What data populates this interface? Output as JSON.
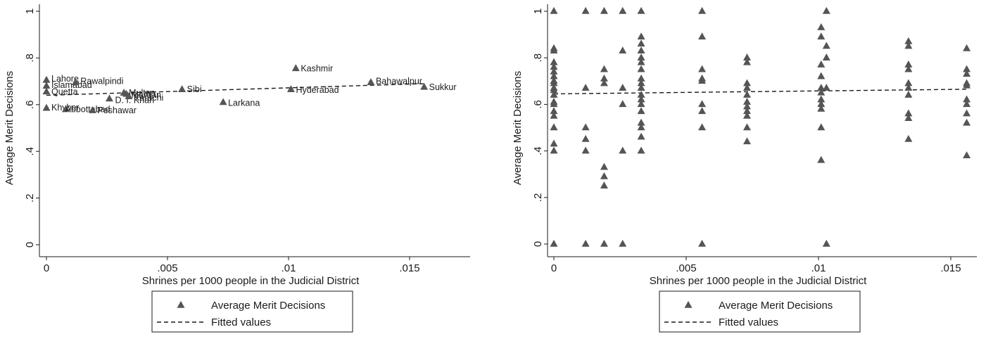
{
  "chart_data": [
    {
      "type": "scatter",
      "title": "",
      "xlabel": "Shrines per 1000 people in the Judicial District",
      "ylabel": "Average Merit Decisions",
      "xlim": [
        -0.0005,
        0.0175
      ],
      "ylim": [
        0,
        1
      ],
      "xticks": [
        0,
        0.005,
        0.01,
        0.015
      ],
      "xtick_labels": [
        "0",
        ".005",
        ".01",
        ".015"
      ],
      "yticks": [
        0,
        0.2,
        0.4,
        0.6,
        0.8,
        1
      ],
      "ytick_labels": [
        "0",
        ".2",
        ".4",
        ".6",
        ".8",
        "1"
      ],
      "grid": false,
      "legend_position": "bottom",
      "legend": [
        "Average Merit Decisions",
        "Fitted values"
      ],
      "points": [
        {
          "label": "Lahore",
          "x": 0.0,
          "y": 0.705
        },
        {
          "label": "Islamabad",
          "x": 0.0,
          "y": 0.68
        },
        {
          "label": "Quetta",
          "x": 0.0,
          "y": 0.655
        },
        {
          "label": "Khyber",
          "x": 0.0,
          "y": 0.585
        },
        {
          "label": "Abbottabad",
          "x": 0.0008,
          "y": 0.58
        },
        {
          "label": "Rawalpindi",
          "x": 0.0012,
          "y": 0.695
        },
        {
          "label": "Peshawar",
          "x": 0.0019,
          "y": 0.575
        },
        {
          "label": "D. I. Khan",
          "x": 0.0026,
          "y": 0.625
        },
        {
          "label": "Multan",
          "x": 0.0032,
          "y": 0.65
        },
        {
          "label": "Mardan",
          "x": 0.0033,
          "y": 0.645
        },
        {
          "label": "Karachi",
          "x": 0.0034,
          "y": 0.635
        },
        {
          "label": "Sibi",
          "x": 0.0056,
          "y": 0.665
        },
        {
          "label": "Larkana",
          "x": 0.0073,
          "y": 0.61
        },
        {
          "label": "Hyderabad",
          "x": 0.0101,
          "y": 0.665
        },
        {
          "label": "Kashmir",
          "x": 0.0103,
          "y": 0.755
        },
        {
          "label": "Bahawalpur",
          "x": 0.0134,
          "y": 0.695
        },
        {
          "label": "Sukkur",
          "x": 0.0156,
          "y": 0.675
        }
      ],
      "fitted": {
        "x": [
          0,
          0.0156
        ],
        "y": [
          0.64,
          0.69
        ]
      }
    },
    {
      "type": "scatter",
      "title": "",
      "xlabel": "Shrines per 1000 people in the Judicial District",
      "ylabel": "Average Merit Decisions",
      "xlim": [
        -0.0005,
        0.0175
      ],
      "ylim": [
        0,
        1
      ],
      "xticks": [
        0,
        0.005,
        0.01,
        0.015
      ],
      "xtick_labels": [
        "0",
        ".005",
        ".01",
        ".015"
      ],
      "yticks": [
        0,
        0.2,
        0.4,
        0.6,
        0.8,
        1
      ],
      "ytick_labels": [
        "0",
        ".2",
        ".4",
        ".6",
        ".8",
        "1"
      ],
      "grid": false,
      "legend_position": "bottom",
      "legend": [
        "Average Merit Decisions",
        "Fitted values"
      ],
      "points": [
        {
          "x": 0.0,
          "y": 1.0
        },
        {
          "x": 0.0,
          "y": 0.84
        },
        {
          "x": 0.0,
          "y": 0.83
        },
        {
          "x": 0.0,
          "y": 0.78
        },
        {
          "x": 0.0,
          "y": 0.76
        },
        {
          "x": 0.0,
          "y": 0.74
        },
        {
          "x": 0.0,
          "y": 0.72
        },
        {
          "x": 0.0,
          "y": 0.7
        },
        {
          "x": 0.0,
          "y": 0.69
        },
        {
          "x": 0.0,
          "y": 0.67
        },
        {
          "x": 0.0,
          "y": 0.66
        },
        {
          "x": 0.0,
          "y": 0.64
        },
        {
          "x": 0.0,
          "y": 0.61
        },
        {
          "x": 0.0,
          "y": 0.6
        },
        {
          "x": 0.0,
          "y": 0.57
        },
        {
          "x": 0.0,
          "y": 0.55
        },
        {
          "x": 0.0,
          "y": 0.5
        },
        {
          "x": 0.0,
          "y": 0.43
        },
        {
          "x": 0.0,
          "y": 0.4
        },
        {
          "x": 0.0,
          "y": 0.0
        },
        {
          "x": 0.0012,
          "y": 1.0
        },
        {
          "x": 0.0012,
          "y": 0.67
        },
        {
          "x": 0.0012,
          "y": 0.5
        },
        {
          "x": 0.0012,
          "y": 0.45
        },
        {
          "x": 0.0012,
          "y": 0.4
        },
        {
          "x": 0.0012,
          "y": 0.0
        },
        {
          "x": 0.0019,
          "y": 1.0
        },
        {
          "x": 0.0019,
          "y": 0.75
        },
        {
          "x": 0.0019,
          "y": 0.71
        },
        {
          "x": 0.0019,
          "y": 0.69
        },
        {
          "x": 0.0019,
          "y": 0.33
        },
        {
          "x": 0.0019,
          "y": 0.29
        },
        {
          "x": 0.0019,
          "y": 0.25
        },
        {
          "x": 0.0019,
          "y": 0.0
        },
        {
          "x": 0.0026,
          "y": 1.0
        },
        {
          "x": 0.0026,
          "y": 0.83
        },
        {
          "x": 0.0026,
          "y": 0.67
        },
        {
          "x": 0.0026,
          "y": 0.6
        },
        {
          "x": 0.0026,
          "y": 0.4
        },
        {
          "x": 0.0026,
          "y": 0.0
        },
        {
          "x": 0.0033,
          "y": 1.0
        },
        {
          "x": 0.0033,
          "y": 0.89
        },
        {
          "x": 0.0033,
          "y": 0.86
        },
        {
          "x": 0.0033,
          "y": 0.83
        },
        {
          "x": 0.0033,
          "y": 0.8
        },
        {
          "x": 0.0033,
          "y": 0.78
        },
        {
          "x": 0.0033,
          "y": 0.75
        },
        {
          "x": 0.0033,
          "y": 0.71
        },
        {
          "x": 0.0033,
          "y": 0.69
        },
        {
          "x": 0.0033,
          "y": 0.67
        },
        {
          "x": 0.0033,
          "y": 0.64
        },
        {
          "x": 0.0033,
          "y": 0.62
        },
        {
          "x": 0.0033,
          "y": 0.6
        },
        {
          "x": 0.0033,
          "y": 0.57
        },
        {
          "x": 0.0033,
          "y": 0.52
        },
        {
          "x": 0.0033,
          "y": 0.5
        },
        {
          "x": 0.0033,
          "y": 0.46
        },
        {
          "x": 0.0033,
          "y": 0.4
        },
        {
          "x": 0.0056,
          "y": 1.0
        },
        {
          "x": 0.0056,
          "y": 0.89
        },
        {
          "x": 0.0056,
          "y": 0.75
        },
        {
          "x": 0.0056,
          "y": 0.71
        },
        {
          "x": 0.0056,
          "y": 0.7
        },
        {
          "x": 0.0056,
          "y": 0.6
        },
        {
          "x": 0.0056,
          "y": 0.57
        },
        {
          "x": 0.0056,
          "y": 0.5
        },
        {
          "x": 0.0056,
          "y": 0.0
        },
        {
          "x": 0.0073,
          "y": 0.8
        },
        {
          "x": 0.0073,
          "y": 0.78
        },
        {
          "x": 0.0073,
          "y": 0.69
        },
        {
          "x": 0.0073,
          "y": 0.67
        },
        {
          "x": 0.0073,
          "y": 0.64
        },
        {
          "x": 0.0073,
          "y": 0.61
        },
        {
          "x": 0.0073,
          "y": 0.59
        },
        {
          "x": 0.0073,
          "y": 0.57
        },
        {
          "x": 0.0073,
          "y": 0.55
        },
        {
          "x": 0.0073,
          "y": 0.5
        },
        {
          "x": 0.0073,
          "y": 0.44
        },
        {
          "x": 0.0101,
          "y": 0.93
        },
        {
          "x": 0.0101,
          "y": 0.89
        },
        {
          "x": 0.0101,
          "y": 0.77
        },
        {
          "x": 0.0101,
          "y": 0.72
        },
        {
          "x": 0.0101,
          "y": 0.67
        },
        {
          "x": 0.0101,
          "y": 0.65
        },
        {
          "x": 0.0101,
          "y": 0.62
        },
        {
          "x": 0.0101,
          "y": 0.6
        },
        {
          "x": 0.0101,
          "y": 0.58
        },
        {
          "x": 0.0101,
          "y": 0.5
        },
        {
          "x": 0.0101,
          "y": 0.36
        },
        {
          "x": 0.0103,
          "y": 1.0
        },
        {
          "x": 0.0103,
          "y": 0.85
        },
        {
          "x": 0.0103,
          "y": 0.8
        },
        {
          "x": 0.0103,
          "y": 0.67
        },
        {
          "x": 0.0103,
          "y": 0.0
        },
        {
          "x": 0.0134,
          "y": 0.87
        },
        {
          "x": 0.0134,
          "y": 0.85
        },
        {
          "x": 0.0134,
          "y": 0.77
        },
        {
          "x": 0.0134,
          "y": 0.75
        },
        {
          "x": 0.0134,
          "y": 0.69
        },
        {
          "x": 0.0134,
          "y": 0.67
        },
        {
          "x": 0.0134,
          "y": 0.64
        },
        {
          "x": 0.0134,
          "y": 0.56
        },
        {
          "x": 0.0134,
          "y": 0.54
        },
        {
          "x": 0.0134,
          "y": 0.45
        },
        {
          "x": 0.0156,
          "y": 0.84
        },
        {
          "x": 0.0156,
          "y": 0.75
        },
        {
          "x": 0.0156,
          "y": 0.73
        },
        {
          "x": 0.0156,
          "y": 0.69
        },
        {
          "x": 0.0156,
          "y": 0.68
        },
        {
          "x": 0.0156,
          "y": 0.62
        },
        {
          "x": 0.0156,
          "y": 0.6
        },
        {
          "x": 0.0156,
          "y": 0.56
        },
        {
          "x": 0.0156,
          "y": 0.52
        },
        {
          "x": 0.0156,
          "y": 0.38
        }
      ],
      "fitted": {
        "x": [
          0,
          0.0156
        ],
        "y": [
          0.645,
          0.665
        ]
      }
    }
  ]
}
